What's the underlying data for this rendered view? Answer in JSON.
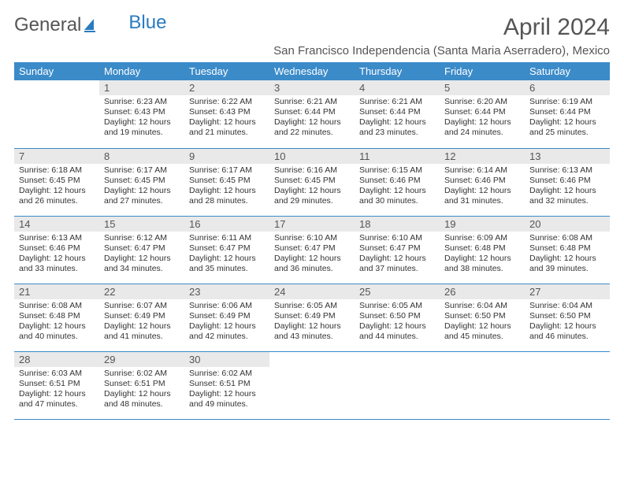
{
  "brand": {
    "part1": "General",
    "part2": "Blue"
  },
  "title": "April 2024",
  "location": "San Francisco Independencia (Santa Maria Aserradero), Mexico",
  "headers": [
    "Sunday",
    "Monday",
    "Tuesday",
    "Wednesday",
    "Thursday",
    "Friday",
    "Saturday"
  ],
  "colors": {
    "header_bg": "#3b8bc9",
    "header_text": "#ffffff",
    "daynum_bg": "#e9e9e9",
    "border": "#3b8bc9",
    "title_color": "#555555",
    "body_text": "#333333"
  },
  "weeks": [
    [
      {
        "n": "",
        "sunrise": "",
        "sunset": "",
        "daylight": ""
      },
      {
        "n": "1",
        "sunrise": "Sunrise: 6:23 AM",
        "sunset": "Sunset: 6:43 PM",
        "daylight": "Daylight: 12 hours and 19 minutes."
      },
      {
        "n": "2",
        "sunrise": "Sunrise: 6:22 AM",
        "sunset": "Sunset: 6:43 PM",
        "daylight": "Daylight: 12 hours and 21 minutes."
      },
      {
        "n": "3",
        "sunrise": "Sunrise: 6:21 AM",
        "sunset": "Sunset: 6:44 PM",
        "daylight": "Daylight: 12 hours and 22 minutes."
      },
      {
        "n": "4",
        "sunrise": "Sunrise: 6:21 AM",
        "sunset": "Sunset: 6:44 PM",
        "daylight": "Daylight: 12 hours and 23 minutes."
      },
      {
        "n": "5",
        "sunrise": "Sunrise: 6:20 AM",
        "sunset": "Sunset: 6:44 PM",
        "daylight": "Daylight: 12 hours and 24 minutes."
      },
      {
        "n": "6",
        "sunrise": "Sunrise: 6:19 AM",
        "sunset": "Sunset: 6:44 PM",
        "daylight": "Daylight: 12 hours and 25 minutes."
      }
    ],
    [
      {
        "n": "7",
        "sunrise": "Sunrise: 6:18 AM",
        "sunset": "Sunset: 6:45 PM",
        "daylight": "Daylight: 12 hours and 26 minutes."
      },
      {
        "n": "8",
        "sunrise": "Sunrise: 6:17 AM",
        "sunset": "Sunset: 6:45 PM",
        "daylight": "Daylight: 12 hours and 27 minutes."
      },
      {
        "n": "9",
        "sunrise": "Sunrise: 6:17 AM",
        "sunset": "Sunset: 6:45 PM",
        "daylight": "Daylight: 12 hours and 28 minutes."
      },
      {
        "n": "10",
        "sunrise": "Sunrise: 6:16 AM",
        "sunset": "Sunset: 6:45 PM",
        "daylight": "Daylight: 12 hours and 29 minutes."
      },
      {
        "n": "11",
        "sunrise": "Sunrise: 6:15 AM",
        "sunset": "Sunset: 6:46 PM",
        "daylight": "Daylight: 12 hours and 30 minutes."
      },
      {
        "n": "12",
        "sunrise": "Sunrise: 6:14 AM",
        "sunset": "Sunset: 6:46 PM",
        "daylight": "Daylight: 12 hours and 31 minutes."
      },
      {
        "n": "13",
        "sunrise": "Sunrise: 6:13 AM",
        "sunset": "Sunset: 6:46 PM",
        "daylight": "Daylight: 12 hours and 32 minutes."
      }
    ],
    [
      {
        "n": "14",
        "sunrise": "Sunrise: 6:13 AM",
        "sunset": "Sunset: 6:46 PM",
        "daylight": "Daylight: 12 hours and 33 minutes."
      },
      {
        "n": "15",
        "sunrise": "Sunrise: 6:12 AM",
        "sunset": "Sunset: 6:47 PM",
        "daylight": "Daylight: 12 hours and 34 minutes."
      },
      {
        "n": "16",
        "sunrise": "Sunrise: 6:11 AM",
        "sunset": "Sunset: 6:47 PM",
        "daylight": "Daylight: 12 hours and 35 minutes."
      },
      {
        "n": "17",
        "sunrise": "Sunrise: 6:10 AM",
        "sunset": "Sunset: 6:47 PM",
        "daylight": "Daylight: 12 hours and 36 minutes."
      },
      {
        "n": "18",
        "sunrise": "Sunrise: 6:10 AM",
        "sunset": "Sunset: 6:47 PM",
        "daylight": "Daylight: 12 hours and 37 minutes."
      },
      {
        "n": "19",
        "sunrise": "Sunrise: 6:09 AM",
        "sunset": "Sunset: 6:48 PM",
        "daylight": "Daylight: 12 hours and 38 minutes."
      },
      {
        "n": "20",
        "sunrise": "Sunrise: 6:08 AM",
        "sunset": "Sunset: 6:48 PM",
        "daylight": "Daylight: 12 hours and 39 minutes."
      }
    ],
    [
      {
        "n": "21",
        "sunrise": "Sunrise: 6:08 AM",
        "sunset": "Sunset: 6:48 PM",
        "daylight": "Daylight: 12 hours and 40 minutes."
      },
      {
        "n": "22",
        "sunrise": "Sunrise: 6:07 AM",
        "sunset": "Sunset: 6:49 PM",
        "daylight": "Daylight: 12 hours and 41 minutes."
      },
      {
        "n": "23",
        "sunrise": "Sunrise: 6:06 AM",
        "sunset": "Sunset: 6:49 PM",
        "daylight": "Daylight: 12 hours and 42 minutes."
      },
      {
        "n": "24",
        "sunrise": "Sunrise: 6:05 AM",
        "sunset": "Sunset: 6:49 PM",
        "daylight": "Daylight: 12 hours and 43 minutes."
      },
      {
        "n": "25",
        "sunrise": "Sunrise: 6:05 AM",
        "sunset": "Sunset: 6:50 PM",
        "daylight": "Daylight: 12 hours and 44 minutes."
      },
      {
        "n": "26",
        "sunrise": "Sunrise: 6:04 AM",
        "sunset": "Sunset: 6:50 PM",
        "daylight": "Daylight: 12 hours and 45 minutes."
      },
      {
        "n": "27",
        "sunrise": "Sunrise: 6:04 AM",
        "sunset": "Sunset: 6:50 PM",
        "daylight": "Daylight: 12 hours and 46 minutes."
      }
    ],
    [
      {
        "n": "28",
        "sunrise": "Sunrise: 6:03 AM",
        "sunset": "Sunset: 6:51 PM",
        "daylight": "Daylight: 12 hours and 47 minutes."
      },
      {
        "n": "29",
        "sunrise": "Sunrise: 6:02 AM",
        "sunset": "Sunset: 6:51 PM",
        "daylight": "Daylight: 12 hours and 48 minutes."
      },
      {
        "n": "30",
        "sunrise": "Sunrise: 6:02 AM",
        "sunset": "Sunset: 6:51 PM",
        "daylight": "Daylight: 12 hours and 49 minutes."
      },
      {
        "n": "",
        "sunrise": "",
        "sunset": "",
        "daylight": ""
      },
      {
        "n": "",
        "sunrise": "",
        "sunset": "",
        "daylight": ""
      },
      {
        "n": "",
        "sunrise": "",
        "sunset": "",
        "daylight": ""
      },
      {
        "n": "",
        "sunrise": "",
        "sunset": "",
        "daylight": ""
      }
    ]
  ]
}
